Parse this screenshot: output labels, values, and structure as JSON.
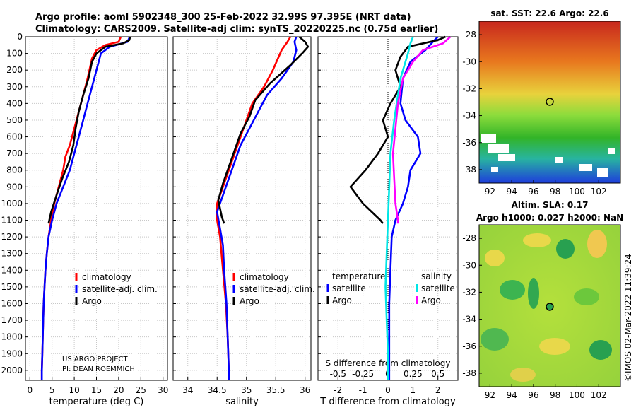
{
  "header": {
    "line1": "Argo profile: aoml 5902348_300 25-Feb-2022 32.99S 97.395E (NRT data)",
    "line2": "Climatology: CARS2009. Satellite-adj clim: synTS_20220225.nc (0.75d earlier)"
  },
  "colors": {
    "climatology": "#ff0000",
    "satellite": "#0000ff",
    "argo": "#000000",
    "sat_sal": "#00e5e5",
    "argo_sal": "#ff00ff"
  },
  "chart_data": [
    {
      "type": "line",
      "id": "temperature",
      "xlabel": "temperature (deg C)",
      "xlim": [
        -1,
        31
      ],
      "ylim": [
        0,
        2060
      ],
      "yticks": [
        0,
        100,
        200,
        300,
        400,
        500,
        600,
        700,
        800,
        900,
        1000,
        1100,
        1200,
        1300,
        1400,
        1500,
        1600,
        1700,
        1800,
        1900,
        2000
      ],
      "xticks": [
        0,
        5,
        10,
        15,
        20,
        25,
        30
      ],
      "legend": [
        "climatology",
        "satellite-adj. clim.",
        "Argo"
      ],
      "footnote": [
        "US ARGO PROJECT",
        "PI: DEAN ROEMMICH"
      ],
      "series": [
        {
          "name": "climatology",
          "key": "climatology",
          "points": [
            [
              20.5,
              0
            ],
            [
              20,
              30
            ],
            [
              17,
              50
            ],
            [
              15,
              80
            ],
            [
              14,
              130
            ],
            [
              13,
              250
            ],
            [
              12,
              350
            ],
            [
              11,
              450
            ],
            [
              10,
              550
            ],
            [
              9,
              650
            ],
            [
              8,
              720
            ],
            [
              7.5,
              800
            ],
            [
              6.5,
              900
            ],
            [
              5.5,
              1000
            ],
            [
              4.8,
              1100
            ],
            [
              4.2,
              1200
            ],
            [
              3.8,
              1300
            ],
            [
              3.5,
              1400
            ],
            [
              3.3,
              1500
            ],
            [
              3.1,
              1600
            ],
            [
              3,
              1700
            ],
            [
              2.9,
              1800
            ],
            [
              2.8,
              1900
            ],
            [
              2.7,
              2000
            ],
            [
              2.7,
              2060
            ]
          ]
        },
        {
          "name": "satellite-adj. clim.",
          "key": "satellite",
          "points": [
            [
              22.5,
              0
            ],
            [
              22,
              30
            ],
            [
              18,
              60
            ],
            [
              16,
              100
            ],
            [
              15,
              200
            ],
            [
              14,
              300
            ],
            [
              13,
              400
            ],
            [
              12,
              500
            ],
            [
              11,
              600
            ],
            [
              10,
              700
            ],
            [
              9,
              800
            ],
            [
              7.5,
              900
            ],
            [
              6,
              1000
            ],
            [
              5,
              1100
            ],
            [
              4.2,
              1200
            ],
            [
              3.8,
              1300
            ],
            [
              3.5,
              1400
            ],
            [
              3.3,
              1500
            ],
            [
              3.1,
              1600
            ],
            [
              3,
              1700
            ],
            [
              2.9,
              1800
            ],
            [
              2.8,
              1900
            ],
            [
              2.7,
              2000
            ],
            [
              2.7,
              2060
            ]
          ]
        },
        {
          "name": "Argo",
          "key": "argo",
          "points": [
            [
              22.6,
              0
            ],
            [
              22.4,
              20
            ],
            [
              21,
              40
            ],
            [
              17,
              60
            ],
            [
              15,
              100
            ],
            [
              14,
              150
            ],
            [
              13.2,
              250
            ],
            [
              12,
              350
            ],
            [
              11,
              450
            ],
            [
              10.3,
              550
            ],
            [
              9.8,
              650
            ],
            [
              8.8,
              750
            ],
            [
              7.3,
              850
            ],
            [
              6,
              950
            ],
            [
              4.8,
              1050
            ],
            [
              4.2,
              1120
            ]
          ]
        }
      ]
    },
    {
      "type": "line",
      "id": "salinity",
      "xlabel": "salinity",
      "xlim": [
        33.75,
        36.1
      ],
      "ylim": [
        0,
        2060
      ],
      "xticks": [
        34,
        34.5,
        35,
        35.5,
        36
      ],
      "legend": [
        "climatology",
        "satellite-adj. clim.",
        "Argo"
      ],
      "series": [
        {
          "name": "climatology",
          "key": "climatology",
          "points": [
            [
              35.75,
              0
            ],
            [
              35.7,
              30
            ],
            [
              35.6,
              80
            ],
            [
              35.55,
              120
            ],
            [
              35.45,
              200
            ],
            [
              35.3,
              300
            ],
            [
              35.1,
              400
            ],
            [
              35,
              500
            ],
            [
              34.9,
              600
            ],
            [
              34.8,
              700
            ],
            [
              34.7,
              800
            ],
            [
              34.6,
              900
            ],
            [
              34.5,
              1000
            ],
            [
              34.5,
              1100
            ],
            [
              34.55,
              1200
            ],
            [
              34.6,
              1400
            ],
            [
              34.65,
              1600
            ],
            [
              34.68,
              1800
            ],
            [
              34.7,
              2000
            ],
            [
              34.7,
              2060
            ]
          ]
        },
        {
          "name": "satellite-adj. clim.",
          "key": "satellite",
          "points": [
            [
              35.85,
              0
            ],
            [
              35.82,
              30
            ],
            [
              35.85,
              80
            ],
            [
              35.8,
              150
            ],
            [
              35.6,
              250
            ],
            [
              35.35,
              350
            ],
            [
              35.2,
              450
            ],
            [
              35.05,
              550
            ],
            [
              34.9,
              650
            ],
            [
              34.8,
              750
            ],
            [
              34.7,
              850
            ],
            [
              34.6,
              950
            ],
            [
              34.5,
              1050
            ],
            [
              34.55,
              1150
            ],
            [
              34.6,
              1250
            ],
            [
              34.62,
              1400
            ],
            [
              34.66,
              1600
            ],
            [
              34.68,
              1800
            ],
            [
              34.7,
              2000
            ],
            [
              34.7,
              2060
            ]
          ]
        },
        {
          "name": "Argo",
          "key": "argo",
          "points": [
            [
              35.9,
              0
            ],
            [
              36,
              30
            ],
            [
              36.05,
              60
            ],
            [
              35.95,
              100
            ],
            [
              35.75,
              170
            ],
            [
              35.4,
              280
            ],
            [
              35.15,
              380
            ],
            [
              35.05,
              480
            ],
            [
              34.9,
              580
            ],
            [
              34.8,
              680
            ],
            [
              34.7,
              780
            ],
            [
              34.6,
              880
            ],
            [
              34.52,
              980
            ],
            [
              34.58,
              1080
            ],
            [
              34.62,
              1120
            ]
          ]
        }
      ]
    },
    {
      "type": "line",
      "id": "difference",
      "xlabel": "T difference from climatology",
      "xlabel2": "S difference from climatology",
      "xlim": [
        -2.8,
        2.8
      ],
      "ylim": [
        0,
        2060
      ],
      "xticks_T": [
        -2,
        -1,
        0,
        1,
        2
      ],
      "xticks_S": [
        "-0.5",
        "-0.25",
        "0",
        "0.25",
        "0.5"
      ],
      "legend_left_title": "temperature",
      "legend_right_title": "salinity",
      "legend_left": [
        "satellite",
        "Argo"
      ],
      "legend_right": [
        "satellite",
        "Argo"
      ],
      "series": [
        {
          "name": "satellite T",
          "key": "satellite",
          "points": [
            [
              2,
              0
            ],
            [
              1.8,
              30
            ],
            [
              1.5,
              80
            ],
            [
              0.9,
              150
            ],
            [
              0.6,
              250
            ],
            [
              0.5,
              400
            ],
            [
              0.7,
              500
            ],
            [
              1.2,
              600
            ],
            [
              1.3,
              700
            ],
            [
              0.9,
              800
            ],
            [
              0.8,
              900
            ],
            [
              0.6,
              1000
            ],
            [
              0.3,
              1100
            ],
            [
              0.15,
              1200
            ],
            [
              0.1,
              1400
            ],
            [
              0.05,
              1600
            ],
            [
              0.05,
              1800
            ],
            [
              0.05,
              2000
            ],
            [
              0.05,
              2060
            ]
          ]
        },
        {
          "name": "Argo T",
          "key": "argo",
          "points": [
            [
              2.3,
              0
            ],
            [
              2,
              20
            ],
            [
              0.8,
              60
            ],
            [
              0.5,
              120
            ],
            [
              0.3,
              200
            ],
            [
              0.5,
              300
            ],
            [
              0.1,
              400
            ],
            [
              -0.2,
              500
            ],
            [
              0,
              600
            ],
            [
              -0.4,
              700
            ],
            [
              -0.9,
              800
            ],
            [
              -1.5,
              900
            ],
            [
              -1,
              1000
            ],
            [
              -0.3,
              1100
            ],
            [
              -0.2,
              1120
            ]
          ]
        },
        {
          "name": "satellite S",
          "key": "sat_sal",
          "points": [
            [
              1,
              0
            ],
            [
              0.9,
              40
            ],
            [
              0.8,
              100
            ],
            [
              0.7,
              150
            ],
            [
              0.5,
              250
            ],
            [
              0.4,
              350
            ],
            [
              0.25,
              500
            ],
            [
              0.1,
              700
            ],
            [
              0.05,
              900
            ],
            [
              0,
              1100
            ],
            [
              -0.05,
              1300
            ],
            [
              -0.1,
              1500
            ],
            [
              -0.05,
              1700
            ],
            [
              0,
              1900
            ],
            [
              0,
              2060
            ]
          ]
        },
        {
          "name": "Argo S",
          "key": "argo_sal",
          "points": [
            [
              2.5,
              0
            ],
            [
              2.2,
              40
            ],
            [
              1.4,
              80
            ],
            [
              1,
              150
            ],
            [
              0.6,
              250
            ],
            [
              0.4,
              400
            ],
            [
              0.3,
              550
            ],
            [
              0.2,
              700
            ],
            [
              0.25,
              850
            ],
            [
              0.3,
              1000
            ],
            [
              0.4,
              1100
            ],
            [
              0.4,
              1120
            ]
          ]
        }
      ]
    },
    {
      "type": "heatmap",
      "id": "sst_map",
      "title": "sat. SST: 22.6 Argo: 22.6",
      "xticks": [
        92,
        94,
        96,
        98,
        100,
        102
      ],
      "yticks": [
        -28,
        -30,
        -32,
        -34,
        -36,
        -38
      ],
      "xlim": [
        91,
        104
      ],
      "ylim": [
        -39,
        -27
      ],
      "argo_position": [
        97.395,
        -32.99
      ]
    },
    {
      "type": "heatmap",
      "id": "sla_map",
      "title1": "Altim. SLA: 0.17",
      "title2": "Argo h1000: 0.027 h2000: NaN",
      "xticks": [
        92,
        94,
        96,
        98,
        100,
        102
      ],
      "yticks": [
        -28,
        -30,
        -32,
        -34,
        -36,
        -38
      ],
      "xlim": [
        91,
        104
      ],
      "ylim": [
        -39,
        -27
      ],
      "argo_position": [
        97.395,
        -32.99
      ]
    }
  ],
  "side_label": "©IMOS 02-Mar-2022 11:39:24"
}
